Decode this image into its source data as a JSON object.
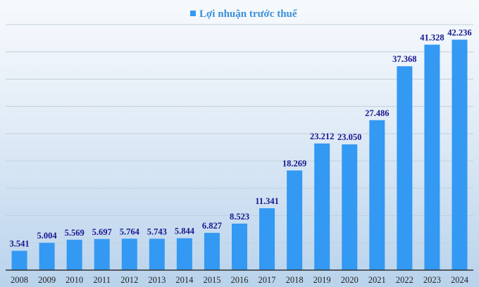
{
  "chart_data": {
    "type": "bar",
    "title": "",
    "xlabel": "",
    "ylabel": "",
    "categories": [
      "2008",
      "2009",
      "2010",
      "2011",
      "2012",
      "2013",
      "2014",
      "2015",
      "2016",
      "2017",
      "2018",
      "2019",
      "2020",
      "2021",
      "2022",
      "2023",
      "2024"
    ],
    "series": [
      {
        "name": "Lợi nhuận trước thuế",
        "values": [
          3.541,
          5.004,
          5.569,
          5.697,
          5.764,
          5.743,
          5.844,
          6.827,
          8.523,
          11.341,
          18.269,
          23.212,
          23.05,
          27.486,
          37.368,
          41.328,
          42.236
        ],
        "labels": [
          "3.541",
          "5.004",
          "5.569",
          "5.697",
          "5.764",
          "5.743",
          "5.844",
          "6.827",
          "8.523",
          "11.341",
          "18.269",
          "23.212",
          "23.050",
          "27.486",
          "37.368",
          "41.328",
          "42.236"
        ]
      }
    ],
    "ylim": [
      0,
      45
    ],
    "grid_step": 5,
    "grid": true,
    "legend_position": "top-center",
    "colors": {
      "bar": "#3399f3",
      "data_label": "#17178f",
      "legend_text": "#3b8fd9",
      "gridline": "#c3cfdb",
      "axis": "#333333"
    }
  }
}
